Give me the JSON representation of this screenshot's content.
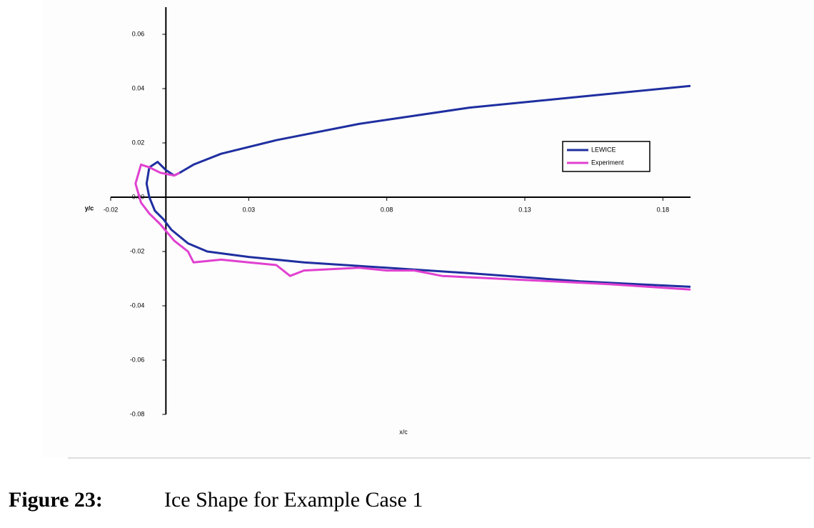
{
  "chart_data": {
    "type": "line",
    "xlabel": "x/c",
    "ylabel": "y/c",
    "xlim": [
      -0.02,
      0.19
    ],
    "ylim": [
      -0.08,
      0.07
    ],
    "xticks": [
      -0.02,
      0.03,
      0.08,
      0.13,
      0.18
    ],
    "yticks": [
      0.06,
      0.04,
      0.02,
      {
        "value": 0,
        "label": "0.00"
      },
      -0.02,
      -0.04,
      -0.06,
      -0.08
    ],
    "series": [
      {
        "name": "LEWICE",
        "color": "#1f2fa0",
        "x": [
          0.19,
          0.15,
          0.11,
          0.07,
          0.04,
          0.02,
          0.01,
          0.005,
          0.003,
          0.0,
          -0.003,
          -0.006,
          -0.007,
          -0.006,
          -0.004,
          -0.001,
          0.002,
          0.008,
          0.015,
          0.03,
          0.05,
          0.08,
          0.11,
          0.15,
          0.19
        ],
        "values": [
          0.041,
          0.037,
          0.033,
          0.027,
          0.021,
          0.016,
          0.012,
          0.009,
          0.008,
          0.01,
          0.013,
          0.011,
          0.005,
          0.0,
          -0.005,
          -0.008,
          -0.012,
          -0.017,
          -0.02,
          -0.022,
          -0.024,
          -0.026,
          -0.028,
          -0.031,
          -0.033
        ]
      },
      {
        "name": "Experiment",
        "color": "#e040d0",
        "x": [
          0.005,
          0.003,
          -0.002,
          -0.006,
          -0.009,
          -0.011,
          -0.009,
          -0.006,
          -0.002,
          0.003,
          0.008,
          0.01,
          0.02,
          0.03,
          0.04,
          0.045,
          0.05,
          0.07,
          0.08,
          0.09,
          0.1,
          0.12,
          0.14,
          0.16,
          0.19
        ],
        "values": [
          0.009,
          0.008,
          0.009,
          0.011,
          0.012,
          0.005,
          -0.002,
          -0.006,
          -0.01,
          -0.016,
          -0.02,
          -0.024,
          -0.023,
          -0.024,
          -0.025,
          -0.029,
          -0.027,
          -0.026,
          -0.027,
          -0.027,
          -0.029,
          -0.03,
          -0.031,
          -0.032,
          -0.034
        ]
      }
    ]
  },
  "caption": {
    "label": "Figure 23:",
    "text": "Ice Shape for Example Case 1"
  }
}
